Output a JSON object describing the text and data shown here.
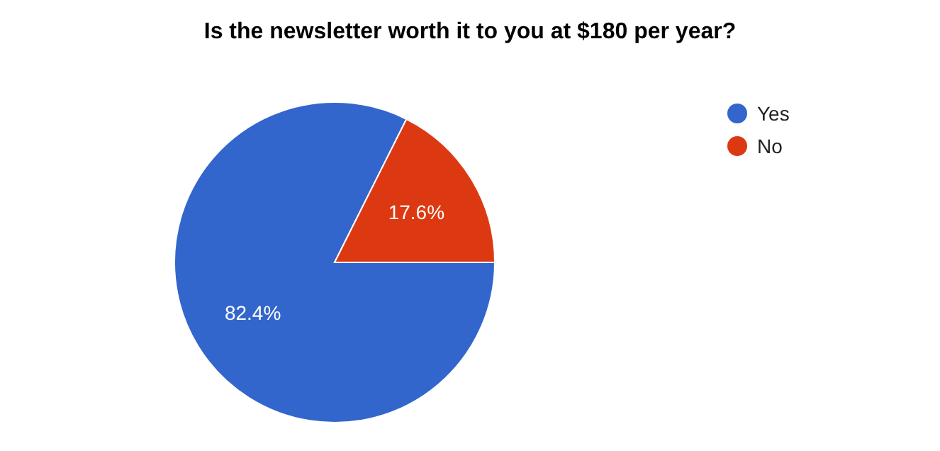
{
  "chart_data": {
    "type": "pie",
    "title": "Is the newsletter worth it to you at $180 per year?",
    "categories": [
      "Yes",
      "No"
    ],
    "values": [
      82.4,
      17.6
    ],
    "colors": [
      "#3366cc",
      "#dc3912"
    ],
    "value_labels": [
      "82.4%",
      "17.6%"
    ],
    "legend": "right"
  }
}
